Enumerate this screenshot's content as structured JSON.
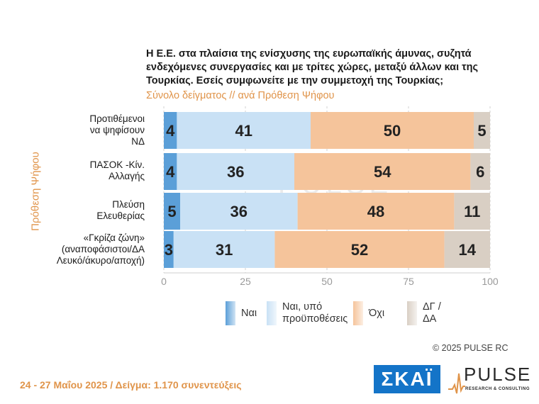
{
  "title": "Η Ε.Ε. στα πλαίσια της ενίσχυσης της ευρωπαϊκής άμυνας, συζητά ενδεχόμενες συνεργασίες και με τρίτες χώρες, μεταξύ άλλων και της Τουρκίας. Εσείς συμφωνείτε με την συμμετοχή της Τουρκίας;",
  "subtitle": "Σύνολο δείγματος // ανά Πρόθεση Ψήφου",
  "group_label": "Πρόθεση Ψήφου",
  "categories": [
    [
      "Προτιθέμενοι",
      "να ψηφίσουν",
      "ΝΔ"
    ],
    [
      "ΠΑΣΟΚ -Κίν.",
      "Αλλαγής"
    ],
    [
      "Πλεύση",
      "Ελευθερίας"
    ],
    [
      "«Γκρίζα ζώνη»",
      "(αναποφάσιστοι/ΔΑ",
      "Λευκό/άκυρο/αποχή)"
    ]
  ],
  "legend": [
    {
      "label": "Ναι"
    },
    {
      "label": "Ναι, υπό προϋποθέσεις"
    },
    {
      "label": "Όχι"
    },
    {
      "label": "ΔΓ / ΔΑ"
    }
  ],
  "colors": {
    "yes": "#5b9fd8",
    "yes_conditional": "#c9e1f5",
    "no": "#f5c49b",
    "dk": "#d9cfc4",
    "label_orange": "#e0944a"
  },
  "chart_data": {
    "type": "bar",
    "orientation": "horizontal",
    "stacked": true,
    "categories": [
      "Προτιθέμενοι να ψηφίσουν ΝΔ",
      "ΠΑΣΟΚ -Κίν. Αλλαγής",
      "Πλεύση Ελευθερίας",
      "«Γκρίζα ζώνη» (αναποφάσιστοι/ΔΑ Λευκό/άκυρο/αποχή)"
    ],
    "series": [
      {
        "name": "Ναι",
        "values": [
          4,
          4,
          5,
          3
        ]
      },
      {
        "name": "Ναι, υπό προϋποθέσεις",
        "values": [
          41,
          36,
          36,
          31
        ]
      },
      {
        "name": "Όχι",
        "values": [
          50,
          54,
          48,
          52
        ]
      },
      {
        "name": "ΔΓ / ΔΑ",
        "values": [
          5,
          6,
          11,
          14
        ]
      }
    ],
    "xlim": [
      0,
      100
    ],
    "xticks": [
      0,
      25,
      50,
      75,
      100
    ],
    "legend_position": "bottom"
  },
  "copyright": "© 2025 PULSE RC",
  "footer": "24 - 27 Μαΐου 2025 / Δείγμα: 1.170 συνεντεύξεις",
  "watermark": "PULSE",
  "logos": {
    "skai": "ΣΚΑΪ",
    "pulse": "PULSE",
    "pulse_sub": "RESEARCH & CONSULTING"
  }
}
